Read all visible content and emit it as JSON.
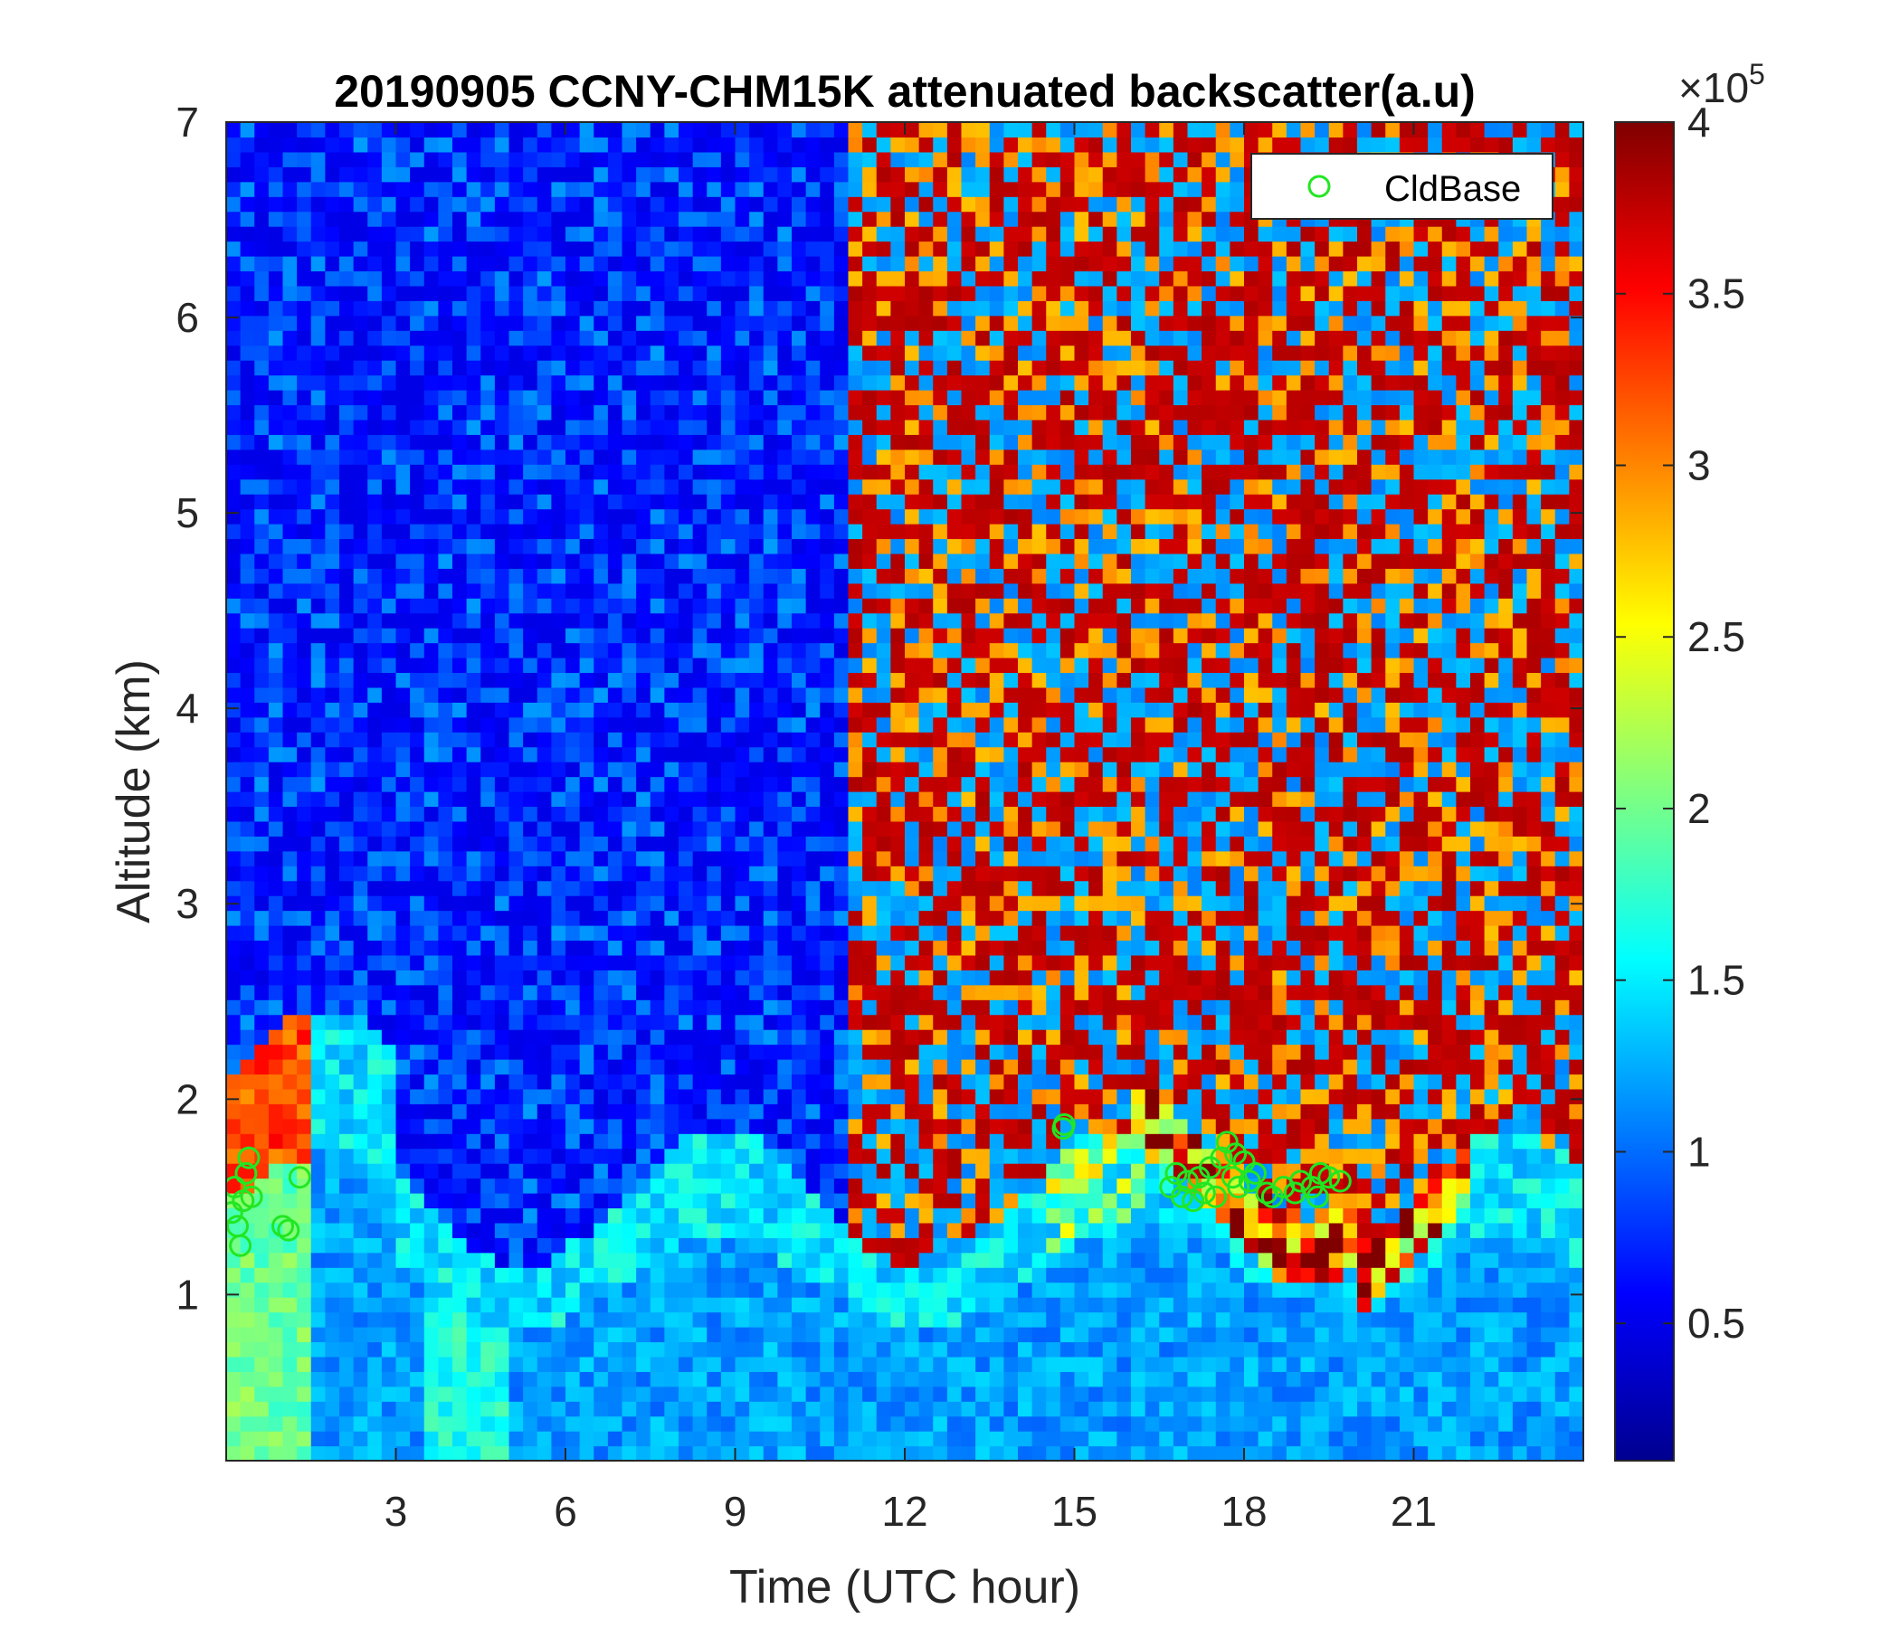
{
  "chart_data": {
    "type": "heatmap",
    "title": "20190905 CCNY-CHM15K attenuated backscatter(a.u)",
    "xlabel": "Time (UTC hour)",
    "ylabel": "Altitude (km)",
    "xlim": [
      0,
      24
    ],
    "ylim": [
      0.15,
      7
    ],
    "xticks": [
      3,
      6,
      9,
      12,
      15,
      18,
      21
    ],
    "yticks": [
      1,
      2,
      3,
      4,
      5,
      6,
      7
    ],
    "colorbar": {
      "range": [
        0.1,
        4
      ],
      "ticks": [
        0.5,
        1,
        1.5,
        2,
        2.5,
        3,
        3.5,
        4
      ],
      "tick_labels": [
        "0.5",
        "1",
        "1.5",
        "2",
        "2.5",
        "3",
        "3.5",
        "4"
      ],
      "exponent_base": "×10",
      "exponent_power": "5",
      "colormap": "jet"
    },
    "legend": {
      "placement": "top-right",
      "entries": [
        "CldBase"
      ]
    },
    "series": [
      {
        "name": "CldBase",
        "marker": "circle",
        "color": "#22e622",
        "points": [
          [
            0.1,
            1.42
          ],
          [
            0.15,
            1.55
          ],
          [
            0.2,
            1.35
          ],
          [
            0.25,
            1.25
          ],
          [
            0.3,
            1.48
          ],
          [
            0.35,
            1.62
          ],
          [
            0.4,
            1.7
          ],
          [
            0.45,
            1.5
          ],
          [
            1.0,
            1.35
          ],
          [
            1.1,
            1.33
          ],
          [
            1.3,
            1.6
          ],
          [
            14.8,
            1.85
          ],
          [
            14.82,
            1.87
          ],
          [
            16.7,
            1.55
          ],
          [
            16.8,
            1.62
          ],
          [
            16.9,
            1.5
          ],
          [
            17.0,
            1.58
          ],
          [
            17.1,
            1.48
          ],
          [
            17.2,
            1.6
          ],
          [
            17.3,
            1.52
          ],
          [
            17.4,
            1.65
          ],
          [
            17.5,
            1.5
          ],
          [
            17.6,
            1.7
          ],
          [
            17.7,
            1.78
          ],
          [
            17.8,
            1.6
          ],
          [
            17.85,
            1.72
          ],
          [
            17.9,
            1.55
          ],
          [
            18.0,
            1.68
          ],
          [
            18.1,
            1.58
          ],
          [
            18.2,
            1.62
          ],
          [
            18.4,
            1.52
          ],
          [
            18.5,
            1.5
          ],
          [
            18.7,
            1.55
          ],
          [
            18.9,
            1.52
          ],
          [
            19.0,
            1.58
          ],
          [
            19.2,
            1.55
          ],
          [
            19.3,
            1.5
          ],
          [
            19.35,
            1.62
          ],
          [
            19.5,
            1.6
          ],
          [
            19.7,
            1.58
          ]
        ]
      }
    ],
    "colors": {
      "colormap_low": "#00008f",
      "colormap_mid": "#7fff7f",
      "colormap_high": "#800000",
      "marker": "#22e622"
    }
  }
}
